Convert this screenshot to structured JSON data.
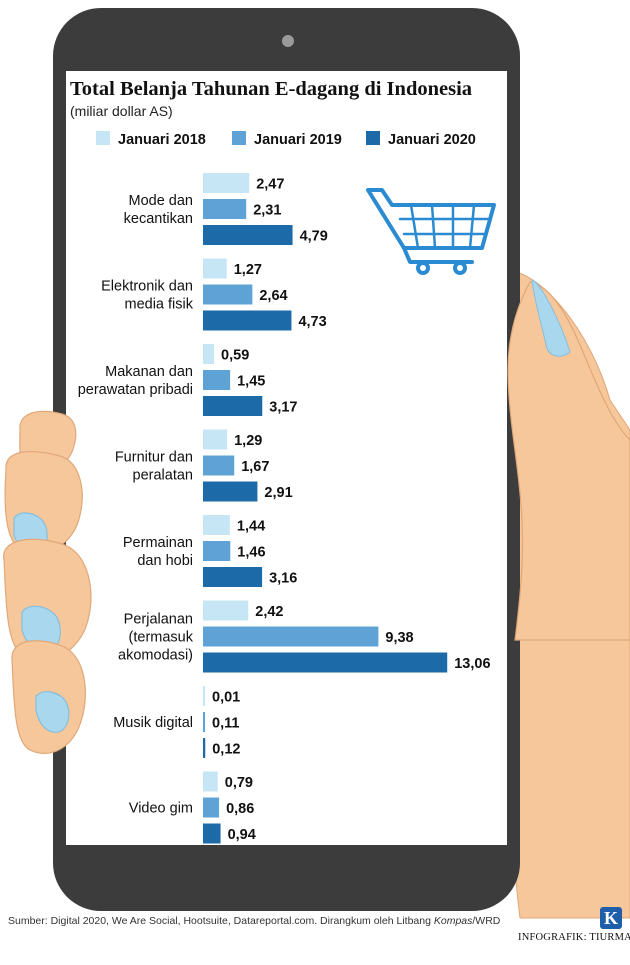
{
  "chart_data": {
    "type": "bar",
    "orientation": "horizontal",
    "title": "Total Belanja Tahunan E-dagang di Indonesia",
    "subtitle": "(miliar dollar AS)",
    "categories": [
      [
        "Mode dan",
        "kecantikan"
      ],
      [
        "Elektronik dan",
        "media fisik"
      ],
      [
        "Makanan dan",
        "perawatan pribadi"
      ],
      [
        "Furnitur dan",
        "peralatan"
      ],
      [
        "Permainan",
        "dan hobi"
      ],
      [
        "Perjalanan",
        "(termasuk",
        "akomodasi)"
      ],
      [
        "Musik digital"
      ],
      [
        "Video gim"
      ]
    ],
    "series": [
      {
        "name": "Januari 2018",
        "color": "#c7e6f5",
        "values": [
          2.47,
          1.27,
          0.59,
          1.29,
          1.44,
          2.42,
          0.01,
          0.79
        ],
        "labels": [
          "2,47",
          "1,27",
          "0,59",
          "1,29",
          "1,44",
          "2,42",
          "0,01",
          "0,79"
        ]
      },
      {
        "name": "Januari 2019",
        "color": "#5fa3d6",
        "values": [
          2.31,
          2.64,
          1.45,
          1.67,
          1.46,
          9.38,
          0.11,
          0.86
        ],
        "labels": [
          "2,31",
          "2,64",
          "1,45",
          "1,67",
          "1,46",
          "9,38",
          "0,11",
          "0,86"
        ]
      },
      {
        "name": "Januari 2020",
        "color": "#1c6aa8",
        "values": [
          4.79,
          4.73,
          3.17,
          2.91,
          3.16,
          13.06,
          0.12,
          0.94
        ],
        "labels": [
          "4,79",
          "4,73",
          "3,17",
          "2,91",
          "3,16",
          "13,06",
          "0,12",
          "0,94"
        ]
      }
    ],
    "legend_position": "top",
    "grid": false
  },
  "footer": {
    "source_prefix": "Sumber: Digital 2020, We Are Social, Hootsuite, Datareportal.com. Dirangkum oleh Litbang ",
    "source_italic": "Kompas",
    "source_suffix": "/WRD",
    "credit": "INFOGRAFIK: TIURMA",
    "logo_letter": "K"
  },
  "illustration": {
    "phone_color": "#3c3c3c",
    "skin_color": "#f5c79b",
    "nail_color": "#a9d7ee",
    "icon": "shopping-cart-icon"
  }
}
